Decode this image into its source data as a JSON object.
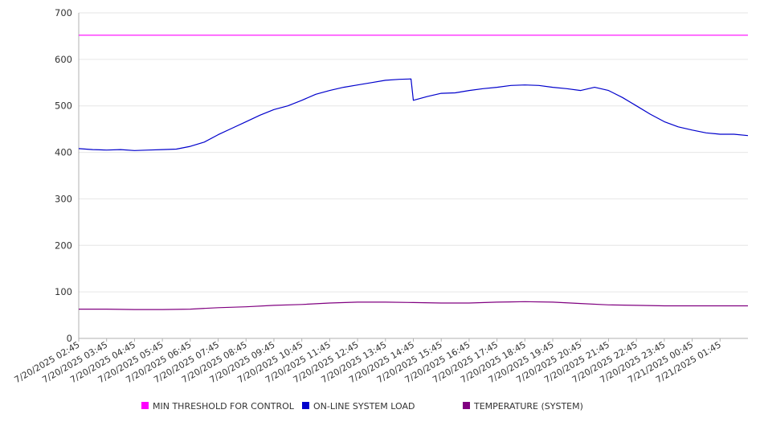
{
  "chart_data": {
    "type": "line",
    "title": "",
    "xlabel": "",
    "ylabel": "",
    "ylim": [
      0,
      700
    ],
    "yticks": [
      0,
      100,
      200,
      300,
      400,
      500,
      600,
      700
    ],
    "grid": true,
    "legend_position": "bottom",
    "x_tick_labels": [
      "7/20/2025 02:45",
      "7/20/2025 03:45",
      "7/20/2025 04:45",
      "7/20/2025 05:45",
      "7/20/2025 06:45",
      "7/20/2025 07:45",
      "7/20/2025 08:45",
      "7/20/2025 09:45",
      "7/20/2025 10:45",
      "7/20/2025 11:45",
      "7/20/2025 12:45",
      "7/20/2025 13:45",
      "7/20/2025 14:45",
      "7/20/2025 15:45",
      "7/20/2025 16:45",
      "7/20/2025 17:45",
      "7/20/2025 18:45",
      "7/20/2025 19:45",
      "7/20/2025 20:45",
      "7/20/2025 21:45",
      "7/20/2025 22:45",
      "7/20/2025 23:45",
      "7/21/2025 00:45",
      "7/21/2025 01:45"
    ],
    "series": [
      {
        "name": "MIN THRESHOLD FOR CONTROL",
        "color": "#ff00ff",
        "points": [
          [
            "7/20/2025 02:45",
            652
          ],
          [
            "7/21/2025 02:45",
            652
          ]
        ]
      },
      {
        "name": "ON-LINE SYSTEM LOAD",
        "color": "#0000cc",
        "points": [
          [
            "7/20/2025 02:45",
            408
          ],
          [
            "7/20/2025 03:15",
            406
          ],
          [
            "7/20/2025 03:45",
            405
          ],
          [
            "7/20/2025 04:15",
            406
          ],
          [
            "7/20/2025 04:45",
            404
          ],
          [
            "7/20/2025 05:15",
            405
          ],
          [
            "7/20/2025 05:45",
            406
          ],
          [
            "7/20/2025 06:15",
            407
          ],
          [
            "7/20/2025 06:45",
            413
          ],
          [
            "7/20/2025 07:15",
            422
          ],
          [
            "7/20/2025 07:45",
            438
          ],
          [
            "7/20/2025 08:15",
            452
          ],
          [
            "7/20/2025 08:45",
            466
          ],
          [
            "7/20/2025 09:15",
            480
          ],
          [
            "7/20/2025 09:45",
            492
          ],
          [
            "7/20/2025 10:15",
            500
          ],
          [
            "7/20/2025 10:45",
            512
          ],
          [
            "7/20/2025 11:15",
            525
          ],
          [
            "7/20/2025 11:45",
            533
          ],
          [
            "7/20/2025 12:15",
            540
          ],
          [
            "7/20/2025 12:45",
            545
          ],
          [
            "7/20/2025 13:15",
            550
          ],
          [
            "7/20/2025 13:45",
            555
          ],
          [
            "7/20/2025 14:15",
            557
          ],
          [
            "7/20/2025 14:40",
            558
          ],
          [
            "7/20/2025 14:45",
            512
          ],
          [
            "7/20/2025 15:15",
            520
          ],
          [
            "7/20/2025 15:45",
            527
          ],
          [
            "7/20/2025 16:15",
            528
          ],
          [
            "7/20/2025 16:45",
            533
          ],
          [
            "7/20/2025 17:15",
            537
          ],
          [
            "7/20/2025 17:45",
            540
          ],
          [
            "7/20/2025 18:15",
            544
          ],
          [
            "7/20/2025 18:45",
            545
          ],
          [
            "7/20/2025 19:15",
            544
          ],
          [
            "7/20/2025 19:45",
            540
          ],
          [
            "7/20/2025 20:15",
            537
          ],
          [
            "7/20/2025 20:45",
            533
          ],
          [
            "7/20/2025 21:15",
            540
          ],
          [
            "7/20/2025 21:45",
            533
          ],
          [
            "7/20/2025 22:15",
            518
          ],
          [
            "7/20/2025 22:45",
            500
          ],
          [
            "7/20/2025 23:15",
            482
          ],
          [
            "7/20/2025 23:45",
            466
          ],
          [
            "7/21/2025 00:15",
            455
          ],
          [
            "7/21/2025 00:45",
            448
          ],
          [
            "7/21/2025 01:15",
            442
          ],
          [
            "7/21/2025 01:45",
            439
          ],
          [
            "7/21/2025 02:15",
            439
          ],
          [
            "7/21/2025 02:45",
            436
          ]
        ]
      },
      {
        "name": "TEMPERATURE (SYSTEM)",
        "color": "#800080",
        "points": [
          [
            "7/20/2025 02:45",
            63
          ],
          [
            "7/20/2025 03:45",
            63
          ],
          [
            "7/20/2025 04:45",
            62
          ],
          [
            "7/20/2025 05:45",
            62
          ],
          [
            "7/20/2025 06:45",
            63
          ],
          [
            "7/20/2025 07:45",
            66
          ],
          [
            "7/20/2025 08:45",
            68
          ],
          [
            "7/20/2025 09:45",
            71
          ],
          [
            "7/20/2025 10:45",
            73
          ],
          [
            "7/20/2025 11:45",
            76
          ],
          [
            "7/20/2025 12:45",
            78
          ],
          [
            "7/20/2025 13:45",
            78
          ],
          [
            "7/20/2025 14:45",
            77
          ],
          [
            "7/20/2025 15:45",
            76
          ],
          [
            "7/20/2025 16:45",
            76
          ],
          [
            "7/20/2025 17:45",
            78
          ],
          [
            "7/20/2025 18:45",
            79
          ],
          [
            "7/20/2025 19:45",
            78
          ],
          [
            "7/20/2025 20:45",
            75
          ],
          [
            "7/20/2025 21:45",
            72
          ],
          [
            "7/20/2025 22:45",
            71
          ],
          [
            "7/20/2025 23:45",
            70
          ],
          [
            "7/21/2025 00:45",
            70
          ],
          [
            "7/21/2025 01:45",
            70
          ],
          [
            "7/21/2025 02:45",
            70
          ]
        ]
      }
    ]
  }
}
